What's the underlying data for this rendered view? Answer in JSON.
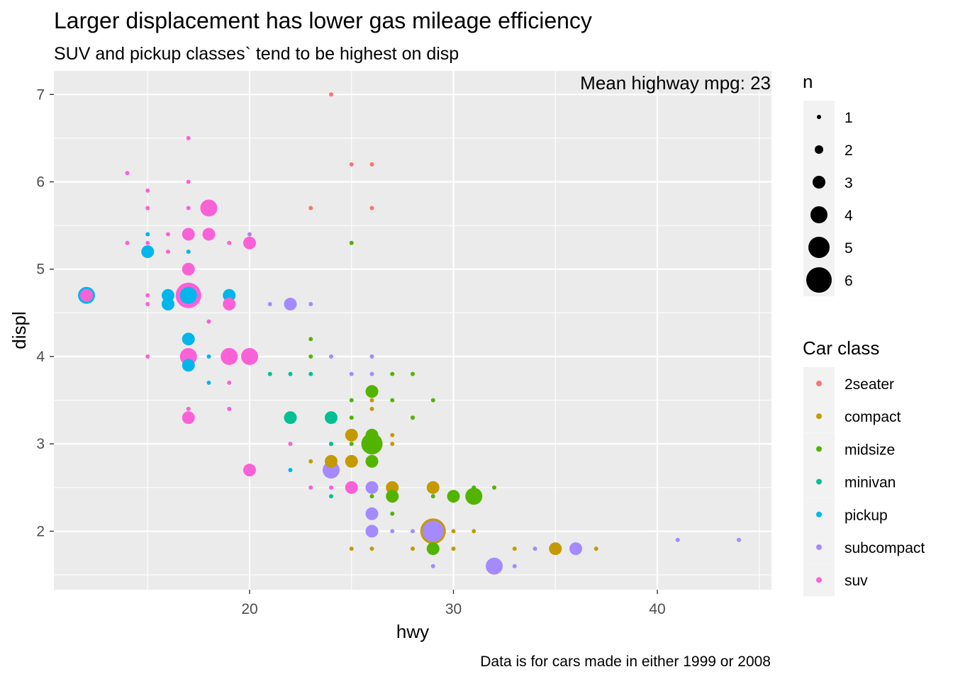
{
  "chart_data": {
    "type": "scatter",
    "title": "Larger displacement has lower gas mileage efficiency",
    "subtitle": "SUV and pickup classes` tend to be highest on disp",
    "caption": "Data is for cars made in either 1999 or 2008",
    "annotation": "Mean highway mpg: 23",
    "xlabel": "hwy",
    "ylabel": "displ",
    "xlim": [
      10.4,
      45.6
    ],
    "ylim": [
      1.33,
      7.27
    ],
    "x_ticks": [
      20,
      30,
      40
    ],
    "y_ticks": [
      2,
      3,
      4,
      5,
      6,
      7
    ],
    "grid": true,
    "size_legend": {
      "title": "n",
      "values": [
        1,
        2,
        3,
        4,
        5,
        6
      ]
    },
    "color_legend": {
      "title": "Car class",
      "position": "right",
      "entries": [
        {
          "name": "2seater",
          "color": "#F8766D"
        },
        {
          "name": "compact",
          "color": "#C49A00"
        },
        {
          "name": "midsize",
          "color": "#53B400"
        },
        {
          "name": "minivan",
          "color": "#00C094"
        },
        {
          "name": "pickup",
          "color": "#00B6EB"
        },
        {
          "name": "subcompact",
          "color": "#A58AFF"
        },
        {
          "name": "suv",
          "color": "#FB61D7"
        }
      ]
    },
    "series": [
      {
        "class": "2seater",
        "points": [
          [
            24,
            7,
            1
          ],
          [
            25,
            6.2,
            1
          ],
          [
            26,
            6.2,
            1
          ],
          [
            23,
            5.7,
            1
          ],
          [
            26,
            5.7,
            1
          ]
        ]
      },
      {
        "class": "compact",
        "points": [
          [
            29,
            2,
            6
          ],
          [
            25,
            3.1,
            3
          ],
          [
            24,
            2.8,
            3
          ],
          [
            25,
            2.8,
            3
          ],
          [
            27,
            2.5,
            3
          ],
          [
            29,
            2.5,
            3
          ],
          [
            35,
            1.8,
            3
          ],
          [
            23,
            2.8,
            1
          ],
          [
            27,
            3.1,
            1
          ],
          [
            26,
            1.8,
            1
          ],
          [
            25,
            1.8,
            1
          ],
          [
            31,
            2,
            1
          ],
          [
            30,
            2,
            1
          ],
          [
            26,
            3.4,
            1
          ],
          [
            26,
            3.5,
            1
          ],
          [
            27,
            3,
            1
          ],
          [
            28,
            1.8,
            1
          ],
          [
            33,
            1.8,
            1
          ],
          [
            37,
            1.8,
            1
          ],
          [
            30,
            1.8,
            1
          ],
          [
            28,
            3.3,
            1
          ]
        ]
      },
      {
        "class": "midsize",
        "points": [
          [
            26,
            3,
            5
          ],
          [
            31,
            2.4,
            4
          ],
          [
            26,
            3.6,
            3
          ],
          [
            26,
            3.1,
            3
          ],
          [
            26,
            2.8,
            3
          ],
          [
            27,
            2.4,
            3
          ],
          [
            30,
            2.4,
            3
          ],
          [
            29,
            1.8,
            3
          ],
          [
            25,
            5.3,
            1
          ],
          [
            23,
            4.2,
            1
          ],
          [
            23,
            4,
            1
          ],
          [
            27,
            3.8,
            1
          ],
          [
            28,
            3.8,
            1
          ],
          [
            25,
            3.5,
            1
          ],
          [
            29,
            3.5,
            1
          ],
          [
            27,
            3.5,
            1
          ],
          [
            28,
            3.3,
            1
          ],
          [
            25,
            3.3,
            1
          ],
          [
            25,
            3,
            1
          ],
          [
            24,
            3,
            1
          ],
          [
            26,
            2.4,
            1
          ],
          [
            27,
            2.2,
            1
          ],
          [
            32,
            2.5,
            1
          ],
          [
            29,
            2.4,
            1
          ],
          [
            31,
            2.5,
            1
          ]
        ]
      },
      {
        "class": "minivan",
        "points": [
          [
            22,
            3.3,
            3
          ],
          [
            24,
            3.3,
            3
          ],
          [
            21,
            3.8,
            1
          ],
          [
            22,
            3.8,
            1
          ],
          [
            23,
            3.8,
            1
          ],
          [
            24,
            3,
            1
          ],
          [
            24,
            2.4,
            1
          ]
        ]
      },
      {
        "class": "pickup",
        "points": [
          [
            12,
            4.7,
            4
          ],
          [
            17,
            4.7,
            4
          ],
          [
            16,
            4.7,
            3
          ],
          [
            19,
            4.7,
            3
          ],
          [
            16,
            4.6,
            3
          ],
          [
            15,
            5.2,
            3
          ],
          [
            17,
            4.2,
            3
          ],
          [
            17,
            3.9,
            3
          ],
          [
            15,
            5.4,
            1
          ],
          [
            17,
            5.2,
            1
          ],
          [
            18,
            4,
            1
          ],
          [
            18,
            3.7,
            1
          ],
          [
            22,
            2.7,
            1
          ]
        ]
      },
      {
        "class": "subcompact",
        "points": [
          [
            29,
            2,
            5
          ],
          [
            32,
            1.6,
            4
          ],
          [
            24,
            2.7,
            4
          ],
          [
            22,
            4.6,
            3
          ],
          [
            26,
            2.5,
            3
          ],
          [
            26,
            2.2,
            3
          ],
          [
            26,
            2,
            3
          ],
          [
            36,
            1.8,
            3
          ],
          [
            20,
            5.4,
            1
          ],
          [
            21,
            4.6,
            1
          ],
          [
            23,
            4.6,
            1
          ],
          [
            24,
            4,
            1
          ],
          [
            26,
            4,
            1
          ],
          [
            25,
            3.8,
            1
          ],
          [
            26,
            3.8,
            1
          ],
          [
            27,
            2,
            1
          ],
          [
            28,
            2,
            1
          ],
          [
            29,
            1.6,
            1
          ],
          [
            33,
            1.6,
            1
          ],
          [
            34,
            1.8,
            1
          ],
          [
            41,
            1.9,
            1
          ],
          [
            44,
            1.9,
            1
          ]
        ]
      },
      {
        "class": "suv",
        "points": [
          [
            17,
            4.7,
            6
          ],
          [
            18,
            5.7,
            4
          ],
          [
            17,
            4,
            4
          ],
          [
            19,
            4,
            4
          ],
          [
            20,
            4,
            4
          ],
          [
            17,
            5.4,
            3
          ],
          [
            18,
            5.4,
            3
          ],
          [
            17,
            5,
            3
          ],
          [
            20,
            5.3,
            3
          ],
          [
            19,
            4.6,
            3
          ],
          [
            17,
            3.3,
            3
          ],
          [
            20,
            2.7,
            3
          ],
          [
            25,
            2.5,
            3
          ],
          [
            12,
            4.7,
            3
          ],
          [
            14,
            6.1,
            1
          ],
          [
            17,
            6.5,
            1
          ],
          [
            17,
            6,
            1
          ],
          [
            15,
            5.9,
            1
          ],
          [
            15,
            5.7,
            1
          ],
          [
            17,
            5.7,
            1
          ],
          [
            16,
            5.4,
            1
          ],
          [
            14,
            5.3,
            1
          ],
          [
            15,
            5.3,
            1
          ],
          [
            16,
            5.2,
            1
          ],
          [
            19,
            5.3,
            1
          ],
          [
            15,
            4.7,
            1
          ],
          [
            15,
            4.6,
            1
          ],
          [
            18,
            4.4,
            1
          ],
          [
            15,
            4,
            1
          ],
          [
            19,
            3.7,
            1
          ],
          [
            17,
            3.4,
            1
          ],
          [
            19,
            3.4,
            1
          ],
          [
            22,
            3,
            1
          ],
          [
            23,
            2.5,
            1
          ],
          [
            24,
            2.5,
            1
          ]
        ]
      }
    ]
  }
}
